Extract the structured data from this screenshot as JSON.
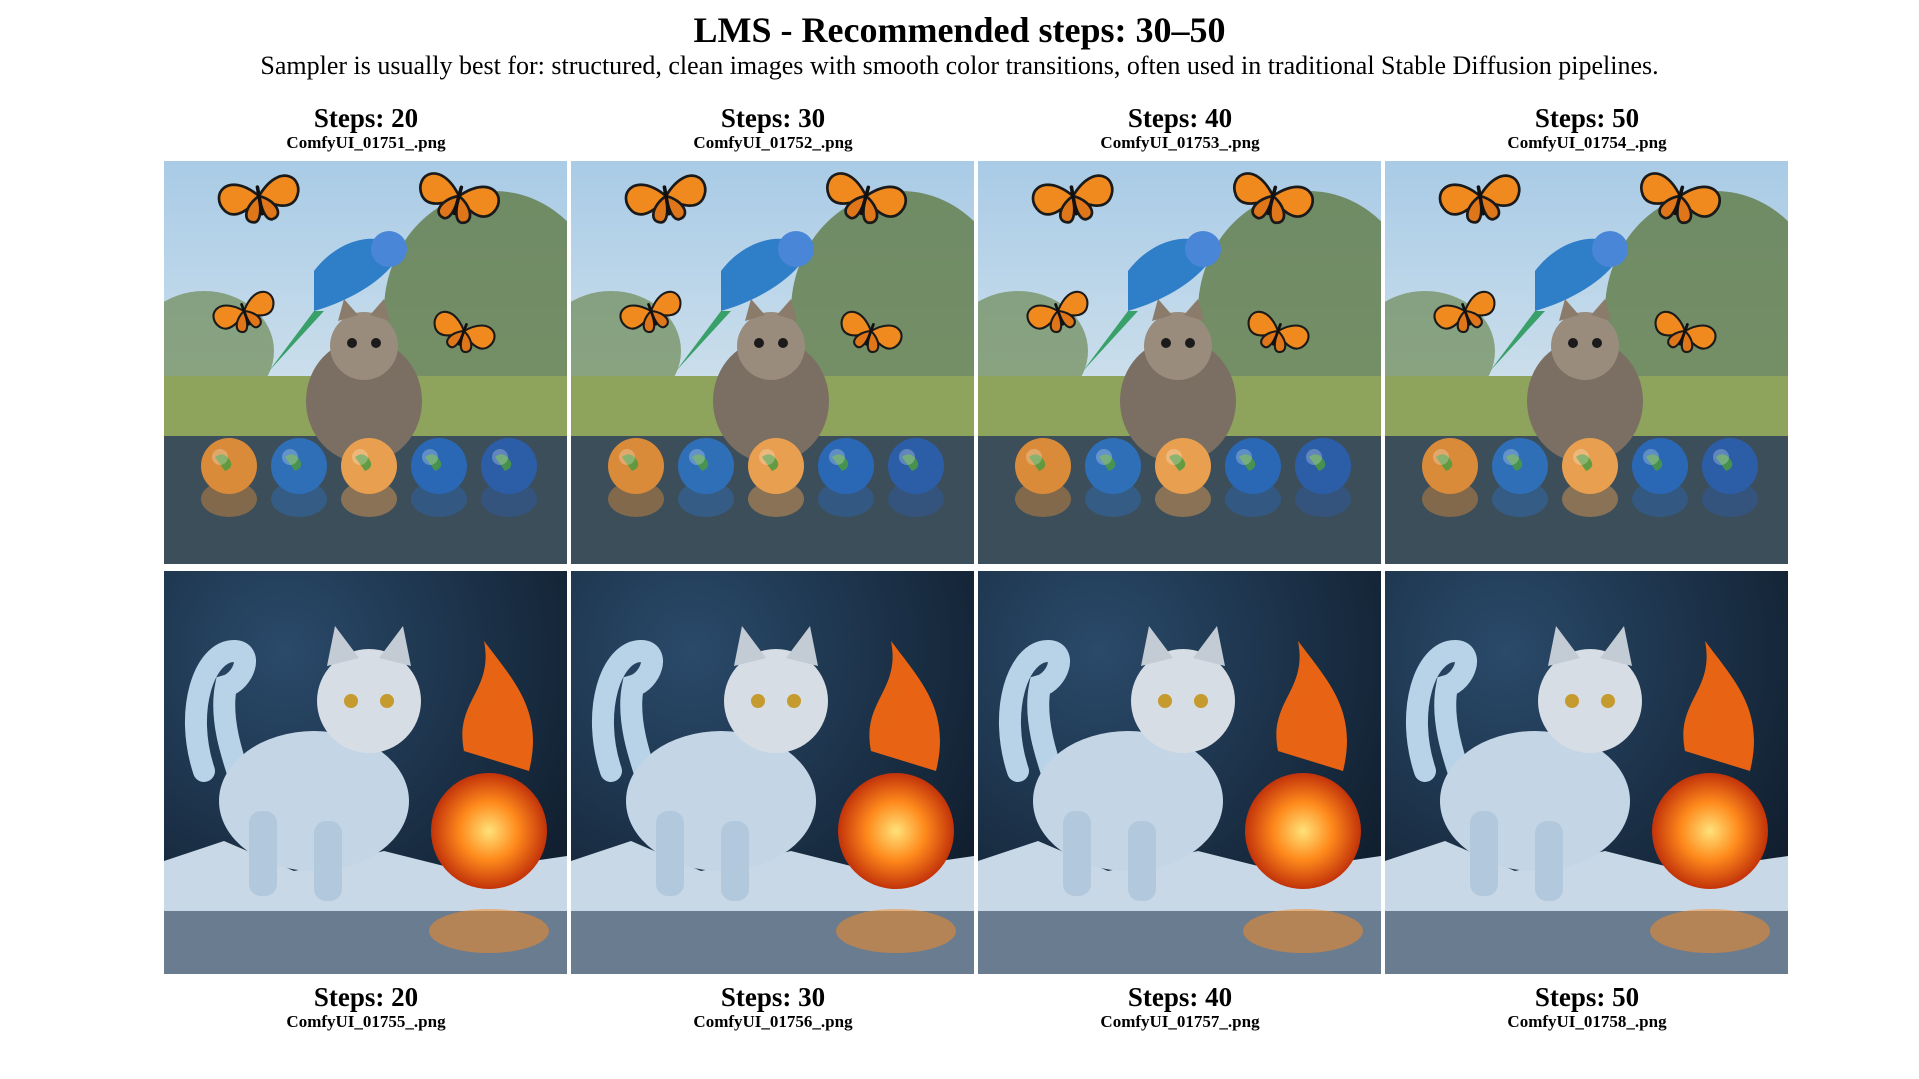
{
  "header": {
    "title": "LMS - Recommended steps: 30–50",
    "subtitle": "Sampler is usually best for: structured, clean images with smooth color transitions, often used in traditional Stable Diffusion pipelines."
  },
  "grid": {
    "row1": [
      {
        "steps": "Steps: 20",
        "file": "ComfyUI_01751_.png"
      },
      {
        "steps": "Steps: 30",
        "file": "ComfyUI_01752_.png"
      },
      {
        "steps": "Steps: 40",
        "file": "ComfyUI_01753_.png"
      },
      {
        "steps": "Steps: 50",
        "file": "ComfyUI_01754_.png"
      }
    ],
    "row2": [
      {
        "steps": "Steps: 20",
        "file": "ComfyUI_01755_.png"
      },
      {
        "steps": "Steps: 30",
        "file": "ComfyUI_01756_.png"
      },
      {
        "steps": "Steps: 40",
        "file": "ComfyUI_01757_.png"
      },
      {
        "steps": "Steps: 50",
        "file": "ComfyUI_01758_.png"
      }
    ]
  },
  "colors": {
    "sky": "#a9cbe6",
    "foliage": "#5f7a45",
    "puddle": "#3b4e5a",
    "ice_bg": "#0f1c2b",
    "fire": "#ff8a1c"
  }
}
